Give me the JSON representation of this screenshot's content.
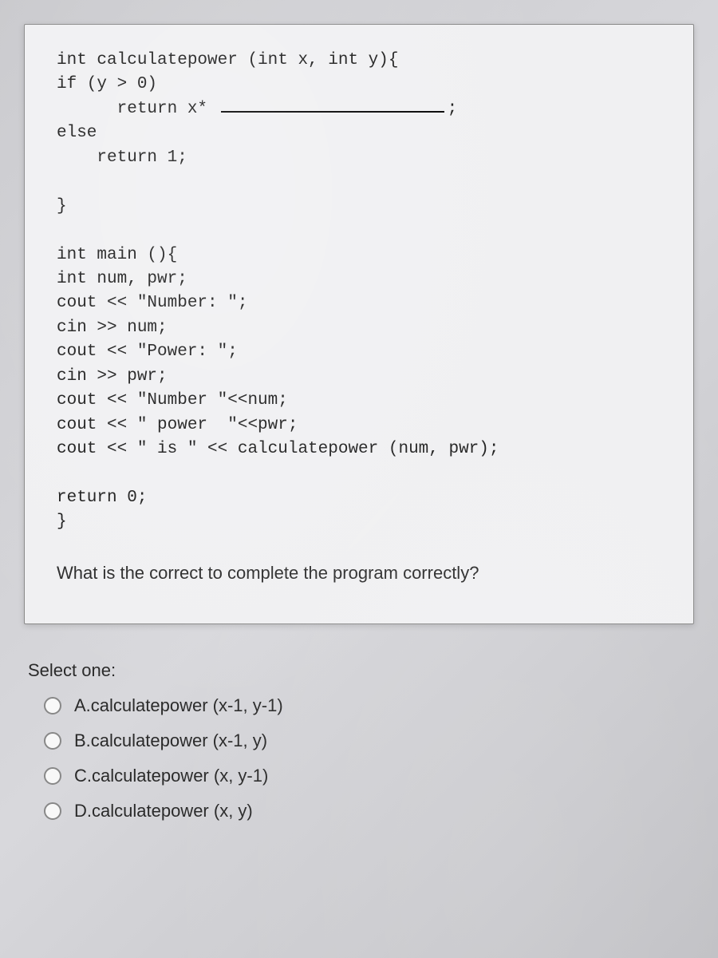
{
  "code": {
    "line1": "int calculatepower (int x, int y){",
    "line2": "if (y > 0)",
    "line3_prefix": "      return x* ",
    "line3_suffix": ";",
    "line4": "else",
    "line5": "    return 1;",
    "line6": "",
    "line7": "}",
    "line8": "",
    "line9": "int main (){",
    "line10": "int num, pwr;",
    "line11": "cout << \"Number: \";",
    "line12": "cin >> num;",
    "line13": "cout << \"Power: \";",
    "line14": "cin >> pwr;",
    "line15": "cout << \"Number \"<<num;",
    "line16": "cout << \" power  \"<<pwr;",
    "line17": "cout << \" is \" << calculatepower (num, pwr);",
    "line18": "",
    "line19": "return 0;",
    "line20": "}"
  },
  "question": "What is the correct to complete the program correctly?",
  "select_label": "Select one:",
  "options": {
    "a": "A.calculatepower (x-1, y-1)",
    "b": "B.calculatepower (x-1, y)",
    "c": "C.calculatepower (x, y-1)",
    "d": "D.calculatepower (x, y)"
  },
  "style": {
    "background_gradient": [
      "#c8c8cc",
      "#d8d8dc",
      "#c0c0c4"
    ],
    "card_background": "#f0f0f2",
    "card_border": "#888",
    "code_font": "Courier New",
    "code_fontsize": 21,
    "text_color": "#1a1a1a",
    "question_fontsize": 22,
    "radio_border": "#888",
    "radio_size": 22,
    "blank_width": 280
  }
}
